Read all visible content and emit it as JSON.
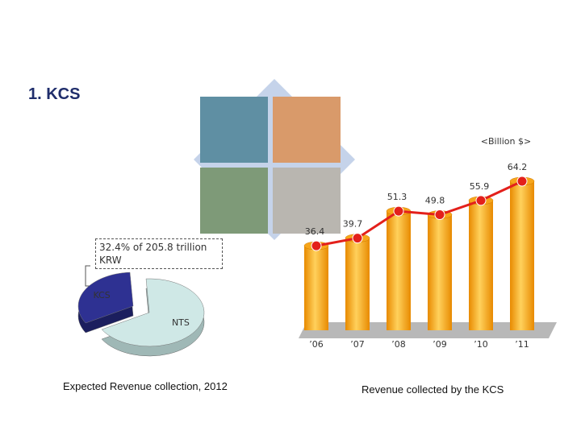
{
  "title": "1. KCS",
  "chart_data": [
    {
      "type": "pie",
      "annotation": "32.4% of 205.8 trillion KRW",
      "caption": "Expected Revenue collection, 2012",
      "categories": [
        "KCS",
        "NTS"
      ],
      "values": [
        32.4,
        67.6
      ],
      "colors": [
        "#2e3192",
        "#cfe8e6"
      ]
    },
    {
      "type": "bar",
      "unit_label": "<Billion $>",
      "caption": "Revenue collected by the KCS",
      "categories": [
        "’06",
        "’07",
        "’08",
        "’09",
        "’10",
        "’11"
      ],
      "values": [
        36.4,
        39.7,
        51.3,
        49.8,
        55.9,
        64.2
      ],
      "color": "#f7a61b",
      "line_color": "#e3201b"
    }
  ]
}
